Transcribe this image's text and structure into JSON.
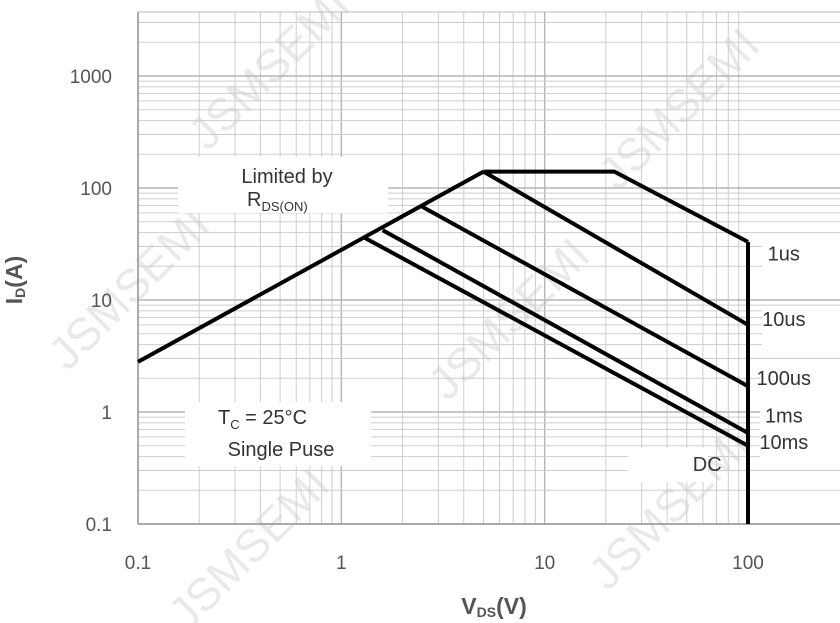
{
  "chart_data": {
    "type": "line",
    "title": "",
    "x_scale": "log",
    "y_scale": "log",
    "xlim": [
      0.1,
      100
    ],
    "ylim": [
      0.1,
      4000
    ],
    "grid": true,
    "xlabel": {
      "main": "V",
      "sub": "DS",
      "unit": "(V)"
    },
    "ylabel": {
      "main": "I",
      "sub": "D",
      "unit": "(A)"
    },
    "x_ticks": [
      {
        "value": 0.1,
        "label": "0.1"
      },
      {
        "value": 1,
        "label": "1"
      },
      {
        "value": 10,
        "label": "10"
      },
      {
        "value": 100,
        "label": "100"
      }
    ],
    "y_ticks": [
      {
        "value": 0.1,
        "label": "0.1"
      },
      {
        "value": 1,
        "label": "1"
      },
      {
        "value": 10,
        "label": "10"
      },
      {
        "value": 100,
        "label": "100"
      },
      {
        "value": 1000,
        "label": "1000"
      }
    ],
    "series": [
      {
        "name": "Limited by RDS(ON)",
        "points": [
          [
            0.1,
            2.8
          ],
          [
            5,
            140
          ]
        ]
      },
      {
        "name": "1us",
        "points": [
          [
            5,
            140
          ],
          [
            22,
            140
          ],
          [
            100,
            33
          ]
        ]
      },
      {
        "name": "10us",
        "points": [
          [
            5,
            140
          ],
          [
            100,
            6
          ]
        ]
      },
      {
        "name": "100us",
        "points": [
          [
            2.5,
            68
          ],
          [
            100,
            1.7
          ]
        ]
      },
      {
        "name": "1ms",
        "points": [
          [
            1.6,
            42
          ],
          [
            100,
            0.65
          ]
        ]
      },
      {
        "name": "10ms",
        "points": [
          [
            1.3,
            36
          ],
          [
            100,
            0.5
          ]
        ]
      },
      {
        "name": "DC",
        "points": [
          [
            100,
            33
          ],
          [
            100,
            0.1
          ]
        ]
      }
    ],
    "series_labels": [
      {
        "text": "1us",
        "x": 150,
        "y": 25
      },
      {
        "text": "10us",
        "x": 150,
        "y": 6.5
      },
      {
        "text": "100us",
        "x": 150,
        "y": 1.95
      },
      {
        "text": "1ms",
        "x": 150,
        "y": 0.9
      },
      {
        "text": "10ms",
        "x": 150,
        "y": 0.52
      },
      {
        "text": "DC",
        "x": 63,
        "y": 0.33
      }
    ],
    "annotations": {
      "limit_line1": "Limited by",
      "limit_main": "R",
      "limit_sub": "DS(ON)",
      "tc_main": "T",
      "tc_sub": "C",
      "tc_rest": " = 25°C",
      "pulse": "Single Puse"
    },
    "watermark": "JSMSEMI"
  }
}
